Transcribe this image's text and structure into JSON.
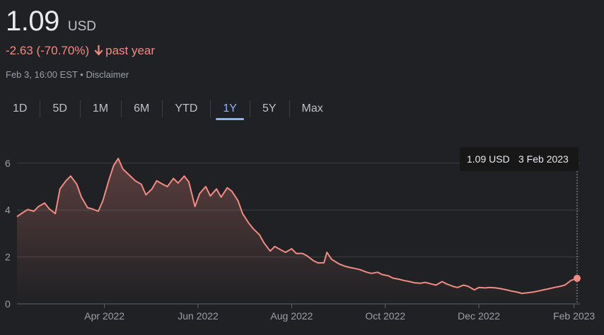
{
  "header": {
    "price": "1.09",
    "currency": "USD",
    "change": "-2.63 (-70.70%)",
    "change_period": "past year",
    "change_icon": "arrow-down-icon",
    "timestamp": "Feb 3, 16:00 EST",
    "separator": "•",
    "disclaimer": "Disclaimer"
  },
  "tabs": [
    {
      "label": "1D"
    },
    {
      "label": "5D"
    },
    {
      "label": "1M"
    },
    {
      "label": "6M"
    },
    {
      "label": "YTD"
    },
    {
      "label": "1Y",
      "active": true
    },
    {
      "label": "5Y"
    },
    {
      "label": "Max"
    }
  ],
  "tooltip": {
    "value": "1.09 USD",
    "date": "3 Feb 2023"
  },
  "colors": {
    "line": "#f28b82",
    "accent": "#8ab4f8",
    "background": "#202124"
  },
  "chart_data": {
    "type": "area",
    "title": "",
    "xlabel": "",
    "ylabel": "",
    "y_ticks": [
      0,
      2,
      4,
      6
    ],
    "ylim": [
      0,
      6.6
    ],
    "x_ticks": [
      {
        "label": "Apr 2022",
        "date": "2022-04-01"
      },
      {
        "label": "Jun 2022",
        "date": "2022-06-01"
      },
      {
        "label": "Aug 2022",
        "date": "2022-08-01"
      },
      {
        "label": "Oct 2022",
        "date": "2022-10-01"
      },
      {
        "label": "Dec 2022",
        "date": "2022-12-01"
      },
      {
        "label": "Feb 2023",
        "date": "2023-02-01"
      }
    ],
    "grid": true,
    "series": [
      {
        "values": [
          [
            "2022-02-03",
            3.72
          ],
          [
            "2022-02-07",
            3.9
          ],
          [
            "2022-02-10",
            4.02
          ],
          [
            "2022-02-14",
            3.95
          ],
          [
            "2022-02-17",
            4.15
          ],
          [
            "2022-02-21",
            4.3
          ],
          [
            "2022-02-24",
            4.05
          ],
          [
            "2022-02-28",
            3.85
          ],
          [
            "2022-03-03",
            4.9
          ],
          [
            "2022-03-07",
            5.25
          ],
          [
            "2022-03-10",
            5.45
          ],
          [
            "2022-03-14",
            5.1
          ],
          [
            "2022-03-17",
            4.55
          ],
          [
            "2022-03-21",
            4.1
          ],
          [
            "2022-03-24",
            4.05
          ],
          [
            "2022-03-28",
            3.95
          ],
          [
            "2022-03-31",
            4.4
          ],
          [
            "2022-04-04",
            5.3
          ],
          [
            "2022-04-07",
            5.9
          ],
          [
            "2022-04-10",
            6.2
          ],
          [
            "2022-04-13",
            5.75
          ],
          [
            "2022-04-17",
            5.5
          ],
          [
            "2022-04-21",
            5.25
          ],
          [
            "2022-04-25",
            5.1
          ],
          [
            "2022-04-28",
            4.65
          ],
          [
            "2022-05-02",
            4.9
          ],
          [
            "2022-05-05",
            5.25
          ],
          [
            "2022-05-09",
            5.1
          ],
          [
            "2022-05-12",
            5.0
          ],
          [
            "2022-05-16",
            5.35
          ],
          [
            "2022-05-19",
            5.15
          ],
          [
            "2022-05-23",
            5.45
          ],
          [
            "2022-05-26",
            5.2
          ],
          [
            "2022-05-30",
            4.15
          ],
          [
            "2022-06-02",
            4.7
          ],
          [
            "2022-06-06",
            5.0
          ],
          [
            "2022-06-09",
            4.6
          ],
          [
            "2022-06-13",
            4.9
          ],
          [
            "2022-06-16",
            4.55
          ],
          [
            "2022-06-20",
            4.95
          ],
          [
            "2022-06-23",
            4.8
          ],
          [
            "2022-06-27",
            4.4
          ],
          [
            "2022-06-30",
            3.85
          ],
          [
            "2022-07-04",
            3.45
          ],
          [
            "2022-07-07",
            3.2
          ],
          [
            "2022-07-11",
            2.95
          ],
          [
            "2022-07-14",
            2.6
          ],
          [
            "2022-07-18",
            2.25
          ],
          [
            "2022-07-21",
            2.45
          ],
          [
            "2022-07-25",
            2.3
          ],
          [
            "2022-07-28",
            2.2
          ],
          [
            "2022-08-01",
            2.35
          ],
          [
            "2022-08-04",
            2.15
          ],
          [
            "2022-08-08",
            2.15
          ],
          [
            "2022-08-11",
            2.05
          ],
          [
            "2022-08-15",
            1.85
          ],
          [
            "2022-08-18",
            1.75
          ],
          [
            "2022-08-22",
            1.75
          ],
          [
            "2022-08-24",
            2.2
          ],
          [
            "2022-08-27",
            1.9
          ],
          [
            "2022-09-01",
            1.7
          ],
          [
            "2022-09-05",
            1.6
          ],
          [
            "2022-09-08",
            1.55
          ],
          [
            "2022-09-12",
            1.5
          ],
          [
            "2022-09-15",
            1.45
          ],
          [
            "2022-09-19",
            1.35
          ],
          [
            "2022-09-22",
            1.3
          ],
          [
            "2022-09-26",
            1.35
          ],
          [
            "2022-09-29",
            1.25
          ],
          [
            "2022-10-03",
            1.2
          ],
          [
            "2022-10-06",
            1.1
          ],
          [
            "2022-10-10",
            1.05
          ],
          [
            "2022-10-13",
            1.0
          ],
          [
            "2022-10-17",
            0.95
          ],
          [
            "2022-10-20",
            0.9
          ],
          [
            "2022-10-24",
            0.88
          ],
          [
            "2022-10-27",
            0.92
          ],
          [
            "2022-10-31",
            0.85
          ],
          [
            "2022-11-03",
            0.8
          ],
          [
            "2022-11-07",
            0.95
          ],
          [
            "2022-11-10",
            0.85
          ],
          [
            "2022-11-14",
            0.75
          ],
          [
            "2022-11-17",
            0.7
          ],
          [
            "2022-11-21",
            0.8
          ],
          [
            "2022-11-24",
            0.75
          ],
          [
            "2022-11-28",
            0.6
          ],
          [
            "2022-12-01",
            0.7
          ],
          [
            "2022-12-05",
            0.68
          ],
          [
            "2022-12-08",
            0.7
          ],
          [
            "2022-12-12",
            0.68
          ],
          [
            "2022-12-15",
            0.65
          ],
          [
            "2022-12-19",
            0.6
          ],
          [
            "2022-12-22",
            0.55
          ],
          [
            "2022-12-26",
            0.5
          ],
          [
            "2022-12-29",
            0.45
          ],
          [
            "2023-01-02",
            0.48
          ],
          [
            "2023-01-05",
            0.5
          ],
          [
            "2023-01-09",
            0.55
          ],
          [
            "2023-01-12",
            0.6
          ],
          [
            "2023-01-16",
            0.65
          ],
          [
            "2023-01-19",
            0.7
          ],
          [
            "2023-01-23",
            0.75
          ],
          [
            "2023-01-26",
            0.8
          ],
          [
            "2023-01-30",
            1.0
          ],
          [
            "2023-02-03",
            1.09
          ]
        ]
      }
    ]
  }
}
